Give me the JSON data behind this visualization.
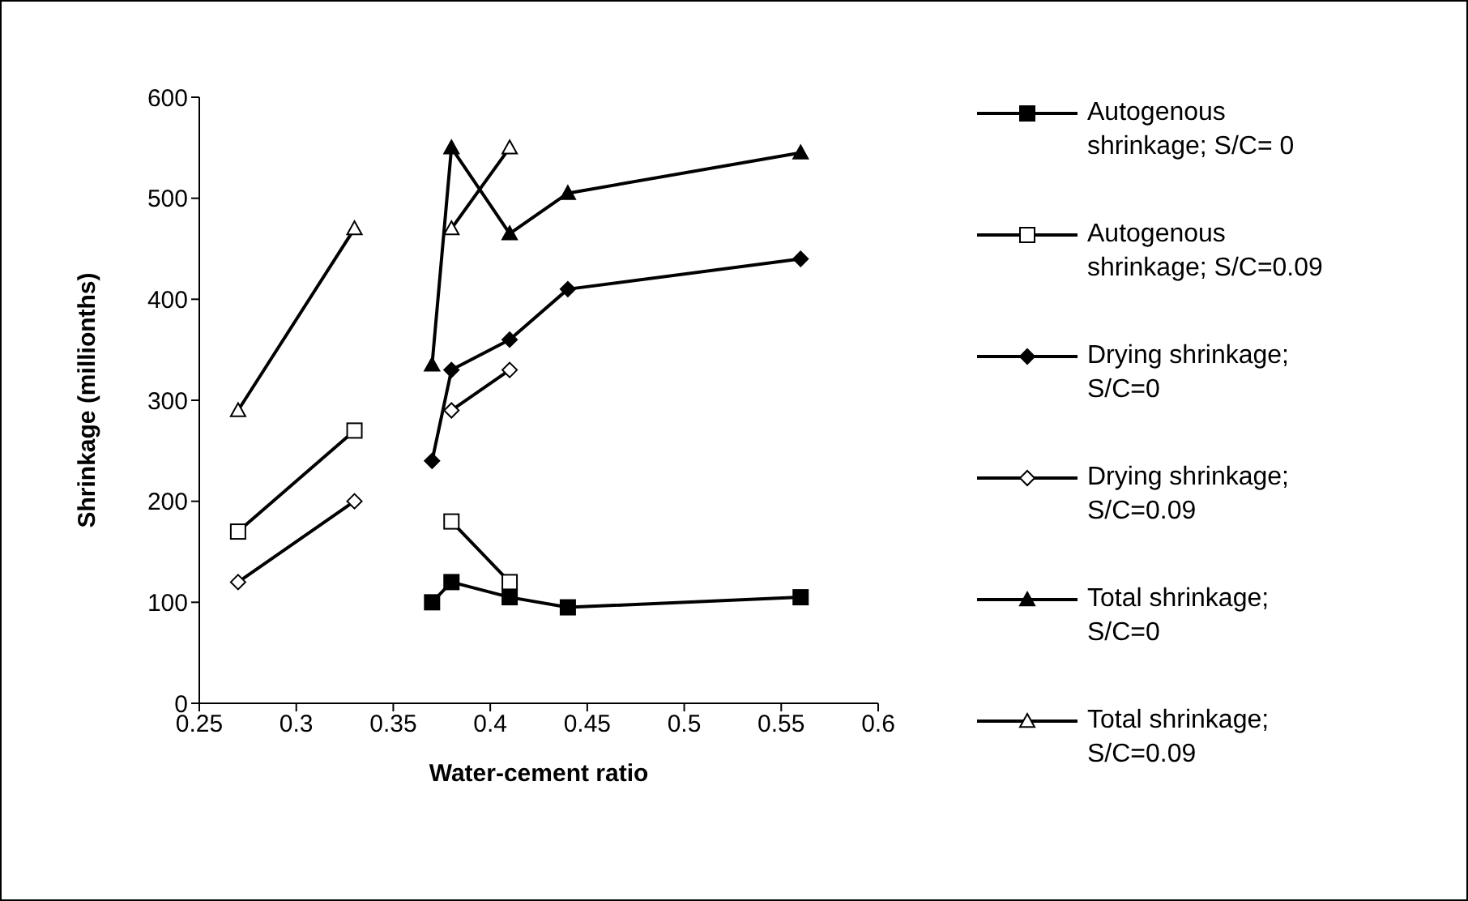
{
  "chart_data": {
    "type": "line",
    "xlabel": "Water-cement ratio",
    "ylabel": "Shrinkage (millionths)",
    "xlim": [
      0.25,
      0.6
    ],
    "xticks": [
      0.25,
      0.3,
      0.35,
      0.4,
      0.45,
      0.5,
      0.55,
      0.6
    ],
    "ylim": [
      0,
      600
    ],
    "yticks": [
      0,
      100,
      200,
      300,
      400,
      500,
      600
    ],
    "grid": false,
    "legend": "right",
    "line_style": "solid",
    "series": [
      {
        "name": "Autogenous shrinkage; S/C= 0",
        "color": "#000000",
        "marker": "square",
        "x": [
          0.37,
          0.38,
          0.41,
          0.44,
          0.56
        ],
        "values": [
          100,
          120,
          105,
          95,
          105
        ]
      },
      {
        "name": "Autogenous shrinkage; S/C=0.09",
        "color": "#000000",
        "marker": "square",
        "colors": [
          "#ffffff",
          "#ffffff",
          "#ffffff",
          "#ffffff",
          "#ffffff"
        ],
        "x": [
          0.27,
          0.33,
          0.35,
          0.38,
          0.41
        ],
        "values": [
          170,
          270,
          null,
          180,
          120
        ]
      },
      {
        "name": "Drying shrinkage; S/C=0",
        "color": "#000000",
        "marker": "diamond",
        "x": [
          0.37,
          0.38,
          0.41,
          0.44,
          0.56
        ],
        "values": [
          240,
          330,
          360,
          410,
          440
        ]
      },
      {
        "name": "Drying shrinkage; S/C=0.09",
        "color": "#000000",
        "marker": "diamond",
        "colors": [
          "#ffffff",
          "#ffffff",
          "#ffffff",
          "#ffffff",
          "#ffffff"
        ],
        "x": [
          0.27,
          0.33,
          0.35,
          0.38,
          0.41
        ],
        "values": [
          120,
          200,
          null,
          290,
          330
        ]
      },
      {
        "name": "Total shrinkage; S/C=0",
        "color": "#000000",
        "marker": "triangle",
        "x": [
          0.37,
          0.38,
          0.41,
          0.44,
          0.56
        ],
        "values": [
          335,
          550,
          465,
          505,
          545
        ]
      },
      {
        "name": "Total shrinkage; S/C=0.09",
        "color": "#000000",
        "marker": "triangle",
        "colors": [
          "#ffffff",
          "#ffffff",
          "#ffffff",
          "#ffffff",
          "#ffffff"
        ],
        "x": [
          0.27,
          0.33,
          0.35,
          0.38,
          0.41
        ],
        "values": [
          290,
          470,
          null,
          470,
          550
        ]
      }
    ]
  }
}
